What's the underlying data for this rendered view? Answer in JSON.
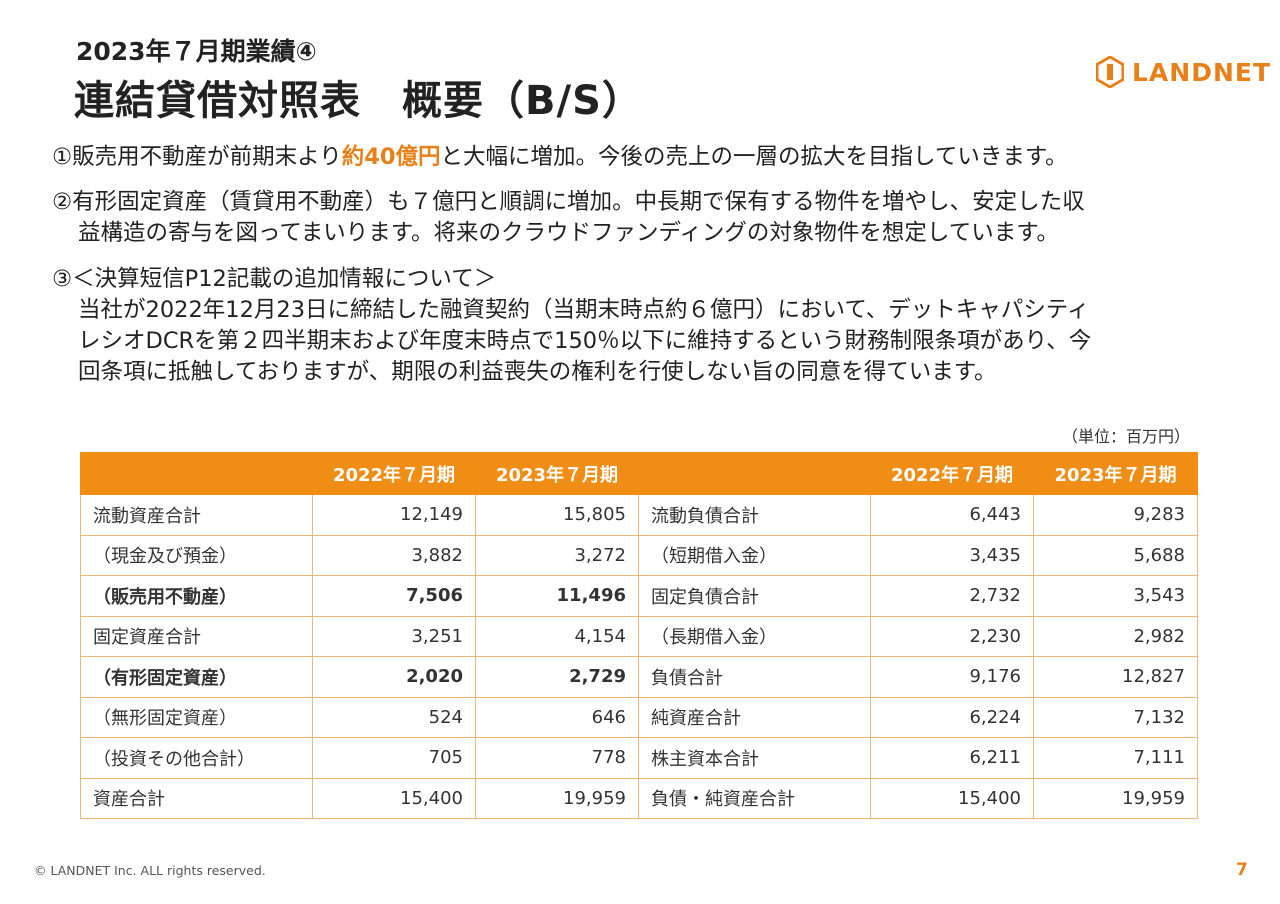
{
  "header": {
    "subtitle": "2023年７月期業績④",
    "title": "連結貸借対照表　概要（B/S）",
    "logo_text": "LANDNET",
    "logo_icon": "landnet-logo-icon",
    "accent_color": "#e8801a"
  },
  "notes": {
    "n1_pre": "①販売用不動産が前期末より",
    "n1_highlight": "約40億円",
    "n1_post": "と大幅に増加。今後の売上の一層の拡大を目指していきます。",
    "n2_line1": "②有形固定資産（賃貸用不動産）も７億円と順調に増加。中長期で保有する物件を増やし、安定した収",
    "n2_line2": "益構造の寄与を図ってまいります。将来のクラウドファンディングの対象物件を想定しています。",
    "n3_line1": "③＜決算短信P12記載の追加情報について＞",
    "n3_line2": "当社が2022年12月23日に締結した融資契約（当期末時点約６億円）において、デットキャパシティ",
    "n3_line3": "レシオDCRを第２四半期末および年度末時点で150％以下に維持するという財務制限条項があり、今",
    "n3_line4": "回条項に抵触しておりますが、期限の利益喪失の権利を行使しない旨の同意を得ています。"
  },
  "table": {
    "unit": "（単位：百万円）",
    "headers": [
      "",
      "2022年７月期",
      "2023年７月期",
      "",
      "2022年７月期",
      "2023年７月期"
    ],
    "rows": [
      {
        "a_label": "流動資産合計",
        "a_2022": "12,149",
        "a_2023": "15,805",
        "l_label": "流動負債合計",
        "l_2022": "6,443",
        "l_2023": "9,283"
      },
      {
        "a_label": "（現金及び預金）",
        "a_2022": "3,882",
        "a_2023": "3,272",
        "l_label": "（短期借入金）",
        "l_2022": "3,435",
        "l_2023": "5,688"
      },
      {
        "a_label": "（販売用不動産）",
        "a_2022": "7,506",
        "a_2023": "11,496",
        "l_label": "固定負債合計",
        "l_2022": "2,732",
        "l_2023": "3,543"
      },
      {
        "a_label": "固定資産合計",
        "a_2022": "3,251",
        "a_2023": "4,154",
        "l_label": "（長期借入金）",
        "l_2022": "2,230",
        "l_2023": "2,982"
      },
      {
        "a_label": "（有形固定資産）",
        "a_2022": "2,020",
        "a_2023": "2,729",
        "l_label": "負債合計",
        "l_2022": "9,176",
        "l_2023": "12,827"
      },
      {
        "a_label": "（無形固定資産）",
        "a_2022": "524",
        "a_2023": "646",
        "l_label": "純資産合計",
        "l_2022": "6,224",
        "l_2023": "7,132"
      },
      {
        "a_label": "（投資その他合計）",
        "a_2022": "705",
        "a_2023": "778",
        "l_label": "株主資本合計",
        "l_2022": "6,211",
        "l_2023": "7,111"
      },
      {
        "a_label": "資産合計",
        "a_2022": "15,400",
        "a_2023": "19,959",
        "l_label": "負債・純資産合計",
        "l_2022": "15,400",
        "l_2023": "19,959"
      }
    ]
  },
  "footer": {
    "copyright": "© LANDNET Inc. ALL rights reserved.",
    "page_number": "7"
  }
}
